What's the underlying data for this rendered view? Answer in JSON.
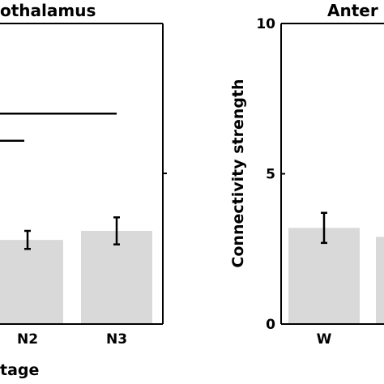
{
  "chart_data": [
    {
      "type": "bar",
      "title": "othalamus",
      "xlabel": "tage",
      "ylabel": "",
      "ylim": [
        0,
        10
      ],
      "categories": [
        "N2",
        "N3"
      ],
      "values": [
        2.8,
        3.1
      ],
      "errors": [
        0.6,
        0.9
      ],
      "significance_lines": [
        {
          "y": 7.0
        },
        {
          "y": 6.1
        }
      ]
    },
    {
      "type": "bar",
      "title": "Anter",
      "xlabel": "",
      "ylabel": "Connectivity strength",
      "ylim": [
        0,
        10
      ],
      "yticks": [
        "0",
        "5",
        "10"
      ],
      "categories": [
        "W"
      ],
      "values": [
        3.2
      ],
      "errors": [
        1.0
      ],
      "partial_bar_value": 2.9
    }
  ]
}
